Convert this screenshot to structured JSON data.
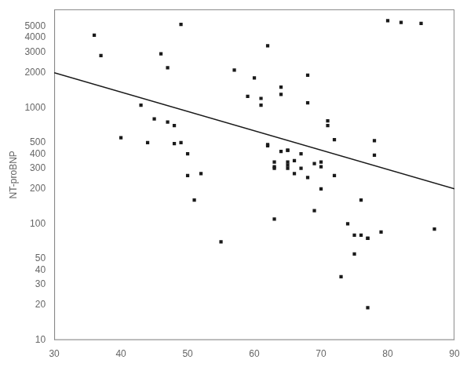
{
  "chart_data": {
    "type": "scatter",
    "ylabel": "NT-proBNP",
    "log": "y",
    "grid": false,
    "xlim": [
      30,
      90
    ],
    "ylim": [
      10,
      7000
    ],
    "xticks": [
      30,
      40,
      50,
      60,
      70,
      80,
      90
    ],
    "yticks": [
      10,
      20,
      30,
      40,
      50,
      100,
      200,
      300,
      400,
      500,
      1000,
      2000,
      3000,
      4000,
      5000
    ],
    "series": [
      {
        "type": "scatter",
        "color": "#1a1a1a",
        "marker": "square",
        "x": [
          36,
          37,
          40,
          43,
          44,
          45,
          46,
          47,
          47,
          48,
          48,
          49,
          49,
          50,
          50,
          51,
          52,
          55,
          57,
          59,
          60,
          61,
          61,
          62,
          62,
          62,
          63,
          63,
          63,
          63,
          64,
          64,
          64,
          65,
          65,
          65,
          65,
          65,
          66,
          66,
          67,
          67,
          68,
          68,
          68,
          69,
          69,
          70,
          70,
          70,
          71,
          71,
          72,
          72,
          73,
          74,
          75,
          75,
          76,
          76,
          77,
          77,
          77,
          78,
          78,
          79,
          80,
          82,
          85,
          87
        ],
        "values": [
          4200,
          2800,
          550,
          1050,
          500,
          800,
          2900,
          750,
          2200,
          700,
          490,
          5200,
          500,
          260,
          400,
          160,
          270,
          70,
          2100,
          1250,
          1800,
          1200,
          1050,
          470,
          480,
          3400,
          340,
          310,
          300,
          110,
          420,
          1500,
          1300,
          430,
          430,
          340,
          320,
          300,
          350,
          270,
          400,
          300,
          1900,
          1100,
          250,
          330,
          130,
          340,
          310,
          200,
          770,
          700,
          530,
          260,
          35,
          100,
          80,
          55,
          80,
          160,
          75,
          75,
          19,
          520,
          390,
          85,
          5600,
          5400,
          5300,
          90
        ]
      },
      {
        "type": "line",
        "color": "#1a1a1a",
        "line_style": "solid",
        "x": [
          30,
          90
        ],
        "values": [
          2000,
          200
        ]
      }
    ]
  }
}
